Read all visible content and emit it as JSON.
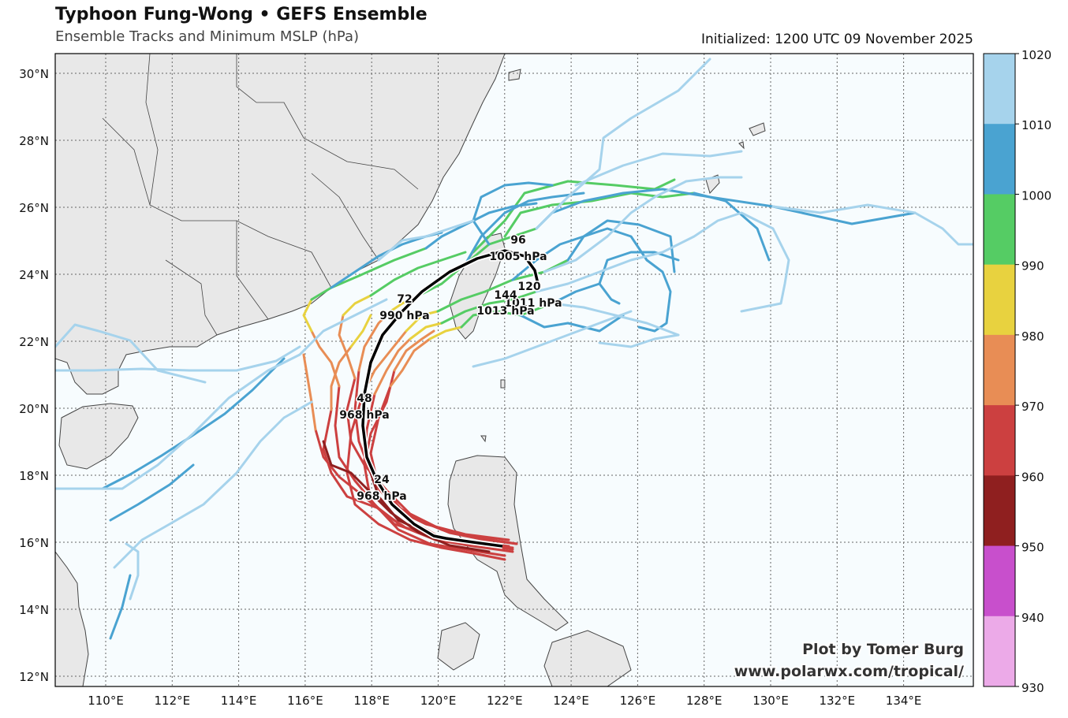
{
  "header": {
    "title": "Typhoon Fung-Wong • GEFS Ensemble",
    "subtitle": "Ensemble Tracks and Minimum MSLP (hPa)",
    "initialized": "Initialized: 1200 UTC 09 November 2025"
  },
  "axes": {
    "lon_labels": [
      "110°E",
      "112°E",
      "114°E",
      "116°E",
      "118°E",
      "120°E",
      "122°E",
      "124°E",
      "126°E",
      "128°E",
      "130°E",
      "132°E",
      "134°E"
    ],
    "lat_labels": [
      "30°N",
      "28°N",
      "26°N",
      "24°N",
      "22°N",
      "20°N",
      "18°N",
      "16°N",
      "14°N",
      "12°N"
    ]
  },
  "colorbar": {
    "ticks": [
      "1020",
      "1010",
      "1000",
      "990",
      "980",
      "970",
      "960",
      "950",
      "940",
      "930"
    ],
    "colors": [
      "#a6d3ec",
      "#4aa3d1",
      "#55cc64",
      "#e8d23f",
      "#e88d55",
      "#cc4040",
      "#8f1f1f",
      "#c84fcc",
      "#ecaae8"
    ]
  },
  "mean_track_labels": [
    {
      "hour": "24",
      "pressure": "968 hPa"
    },
    {
      "hour": "48",
      "pressure": "968 hPa"
    },
    {
      "hour": "72",
      "pressure": "990 hPa"
    },
    {
      "hour": "96",
      "pressure": "1005 hPa"
    },
    {
      "hour": "120",
      "pressure": "1011 hPa"
    },
    {
      "hour": "144",
      "pressure": "1013 hPa"
    }
  ],
  "credit": {
    "line1": "Plot by Tomer Burg",
    "line2": "www.polarwx.com/tropical/"
  }
}
